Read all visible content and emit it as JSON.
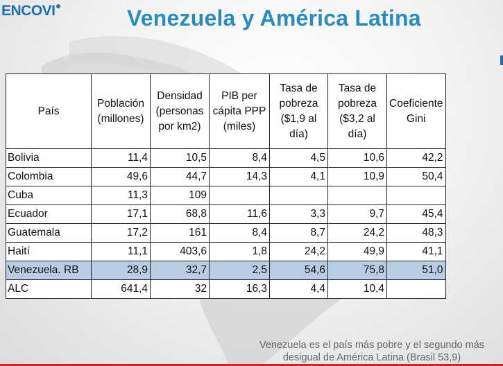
{
  "brand": {
    "logo_text": "ENCOVI",
    "title": "Venezuela y América Latina"
  },
  "table": {
    "headers": [
      "País",
      "Población (millones)",
      "Densidad (personas por km2)",
      "PIB per cápita PPP (miles)",
      "Tasa de pobreza ($1,9 al día)",
      "Tasa de pobreza ($3,2 al día)",
      "Coeficiente Gini"
    ],
    "rows": [
      {
        "country": "Bolivia",
        "cells": [
          "11,4",
          "10,5",
          "8,4",
          "4,5",
          "10,6",
          "42,2"
        ]
      },
      {
        "country": "Colombia",
        "cells": [
          "49,6",
          "44,7",
          "14,3",
          "4,1",
          "10,9",
          "50,4"
        ]
      },
      {
        "country": "Cuba",
        "cells": [
          "11,3",
          "109",
          "",
          "",
          "",
          ""
        ]
      },
      {
        "country": "Ecuador",
        "cells": [
          "17,1",
          "68,8",
          "11,6",
          "3,3",
          "9,7",
          "45,4"
        ]
      },
      {
        "country": "Guatemala",
        "cells": [
          "17,2",
          "161",
          "8,4",
          "8,7",
          "24,2",
          "48,3"
        ]
      },
      {
        "country": "Haití",
        "cells": [
          "11,1",
          "403,6",
          "1,8",
          "24,2",
          "49,9",
          "41,1"
        ]
      },
      {
        "country": "Venezuela. RB",
        "cells": [
          "28,9",
          "32,7",
          "2,5",
          "54,6",
          "75,8",
          "51,0"
        ]
      },
      {
        "country": "ALC",
        "cells": [
          "641,4",
          "32",
          "16,3",
          "4,4",
          "10,4",
          ""
        ]
      }
    ]
  },
  "footnote": {
    "line1": "Venezuela es el país más pobre y el segundo más",
    "line2": "desigual de América Latina (Brasil 53,9)"
  },
  "colors": {
    "title": "#2a8bbd",
    "logo": "#1f6fb5",
    "highlight_row": "#b8cce4",
    "bottom_bar": "#c62828"
  }
}
